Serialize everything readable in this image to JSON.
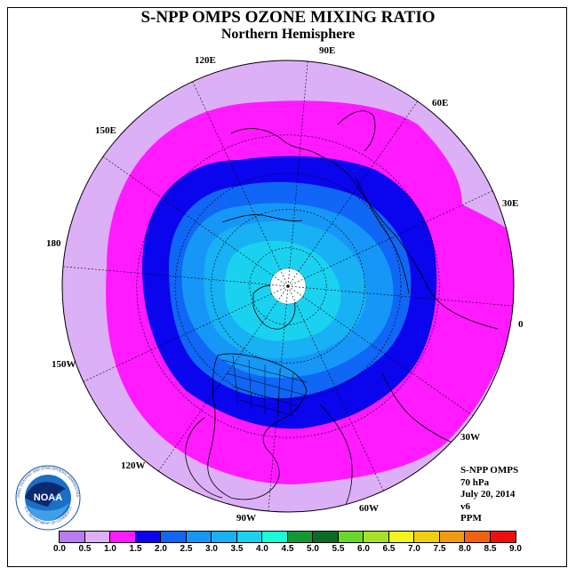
{
  "title": "S-NPP OMPS OZONE MIXING RATIO",
  "subtitle": "Northern Hemisphere",
  "longitude_labels": [
    "90E",
    "60E",
    "30E",
    "0",
    "30W",
    "60W",
    "90W",
    "120W",
    "150W",
    "180",
    "150E",
    "120E"
  ],
  "info": {
    "instrument": "S-NPP OMPS",
    "level": "70 hPa",
    "date": "July 20, 2014",
    "version": "v6",
    "units": "PPM"
  },
  "logo": {
    "text": "NOAA",
    "ring_text": "NATIONAL OCEANIC AND ATMOSPHERIC ADMINISTRATION",
    "ring_bottom": "U.S. DEPARTMENT OF COMMERCE"
  },
  "colorbar": {
    "ticks": [
      "0.0",
      "0.5",
      "1.0",
      "1.5",
      "2.0",
      "2.5",
      "3.0",
      "3.5",
      "4.0",
      "4.5",
      "5.0",
      "5.5",
      "6.0",
      "6.5",
      "7.0",
      "7.5",
      "8.0",
      "8.5",
      "9.0"
    ],
    "colors": [
      "#b97af4",
      "#dcb0f6",
      "#ff1aff",
      "#0a05ec",
      "#1066f5",
      "#1697f7",
      "#18b1f3",
      "#1ad2f0",
      "#18ffd8",
      "#109a35",
      "#0b6b26",
      "#6ad828",
      "#a8e12a",
      "#f0f51b",
      "#f0ce14",
      "#f29a12",
      "#f0620f",
      "#ee0d0f",
      "#8a5133"
    ]
  },
  "zones": {
    "outer_color": "#dcb0f6",
    "band1_color": "#ff1aff",
    "band2_color": "#0a05ec",
    "band3_color": "#1066f5",
    "band4_color": "#1697f7",
    "band5_color": "#18b1f3",
    "band6_color": "#1ad2f0",
    "pole_color": "#ffffff"
  }
}
